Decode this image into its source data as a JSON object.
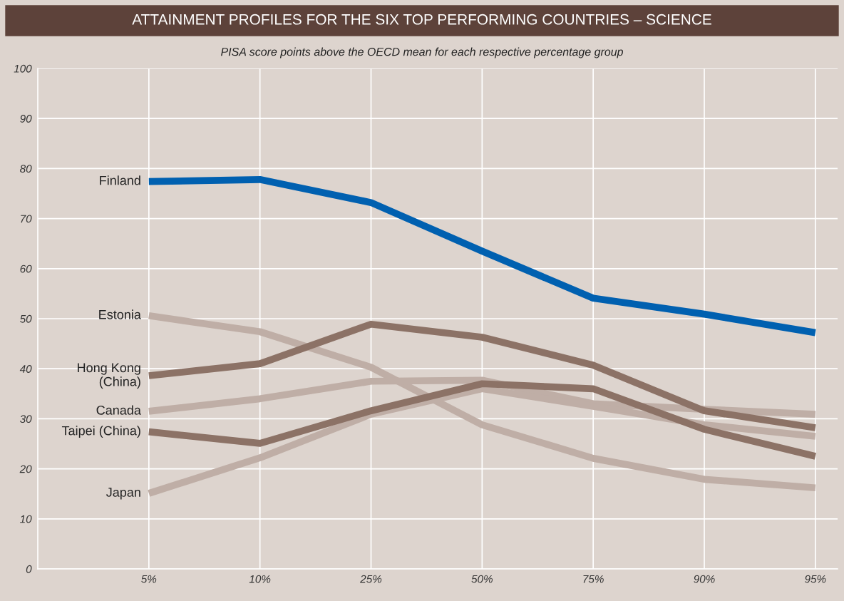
{
  "chart_data": {
    "type": "line",
    "title": "ATTAINMENT PROFILES FOR THE SIX TOP PERFORMING COUNTRIES – SCIENCE",
    "subtitle": "PISA score points above the OECD mean for each respective percentage group",
    "categories": [
      "5%",
      "10%",
      "25%",
      "50%",
      "75%",
      "90%",
      "95%"
    ],
    "series": [
      {
        "name": "Estonia",
        "color": "#bfaea6",
        "values": [
          50.6,
          47.4,
          40.3,
          28.8,
          22.1,
          17.9,
          16.2
        ]
      },
      {
        "name": "Canada",
        "color": "#bfaea6",
        "values": [
          31.5,
          34.0,
          37.5,
          37.7,
          33.0,
          31.9,
          30.9
        ]
      },
      {
        "name": "Japan",
        "color": "#bfaea6",
        "values": [
          15.1,
          22.2,
          30.9,
          36.0,
          32.5,
          28.8,
          26.5
        ]
      },
      {
        "name": "Hong Kong\n(China)",
        "color": "#8c7266",
        "values": [
          38.6,
          41.0,
          48.9,
          46.3,
          40.7,
          31.6,
          28.2
        ]
      },
      {
        "name": "Taipei (China)",
        "color": "#8c7266",
        "values": [
          27.4,
          25.1,
          31.6,
          37.0,
          36.0,
          27.9,
          22.5
        ]
      },
      {
        "name": "Finland",
        "color": "#0060b0",
        "values": [
          77.4,
          77.8,
          73.2,
          63.5,
          54.1,
          50.9,
          47.2
        ]
      }
    ],
    "ylim": [
      0,
      100
    ],
    "yticks": [
      0,
      10,
      20,
      30,
      40,
      50,
      60,
      70,
      80,
      90,
      100
    ],
    "grid": true,
    "legend": false,
    "marker": "none",
    "line_style": "solid"
  }
}
